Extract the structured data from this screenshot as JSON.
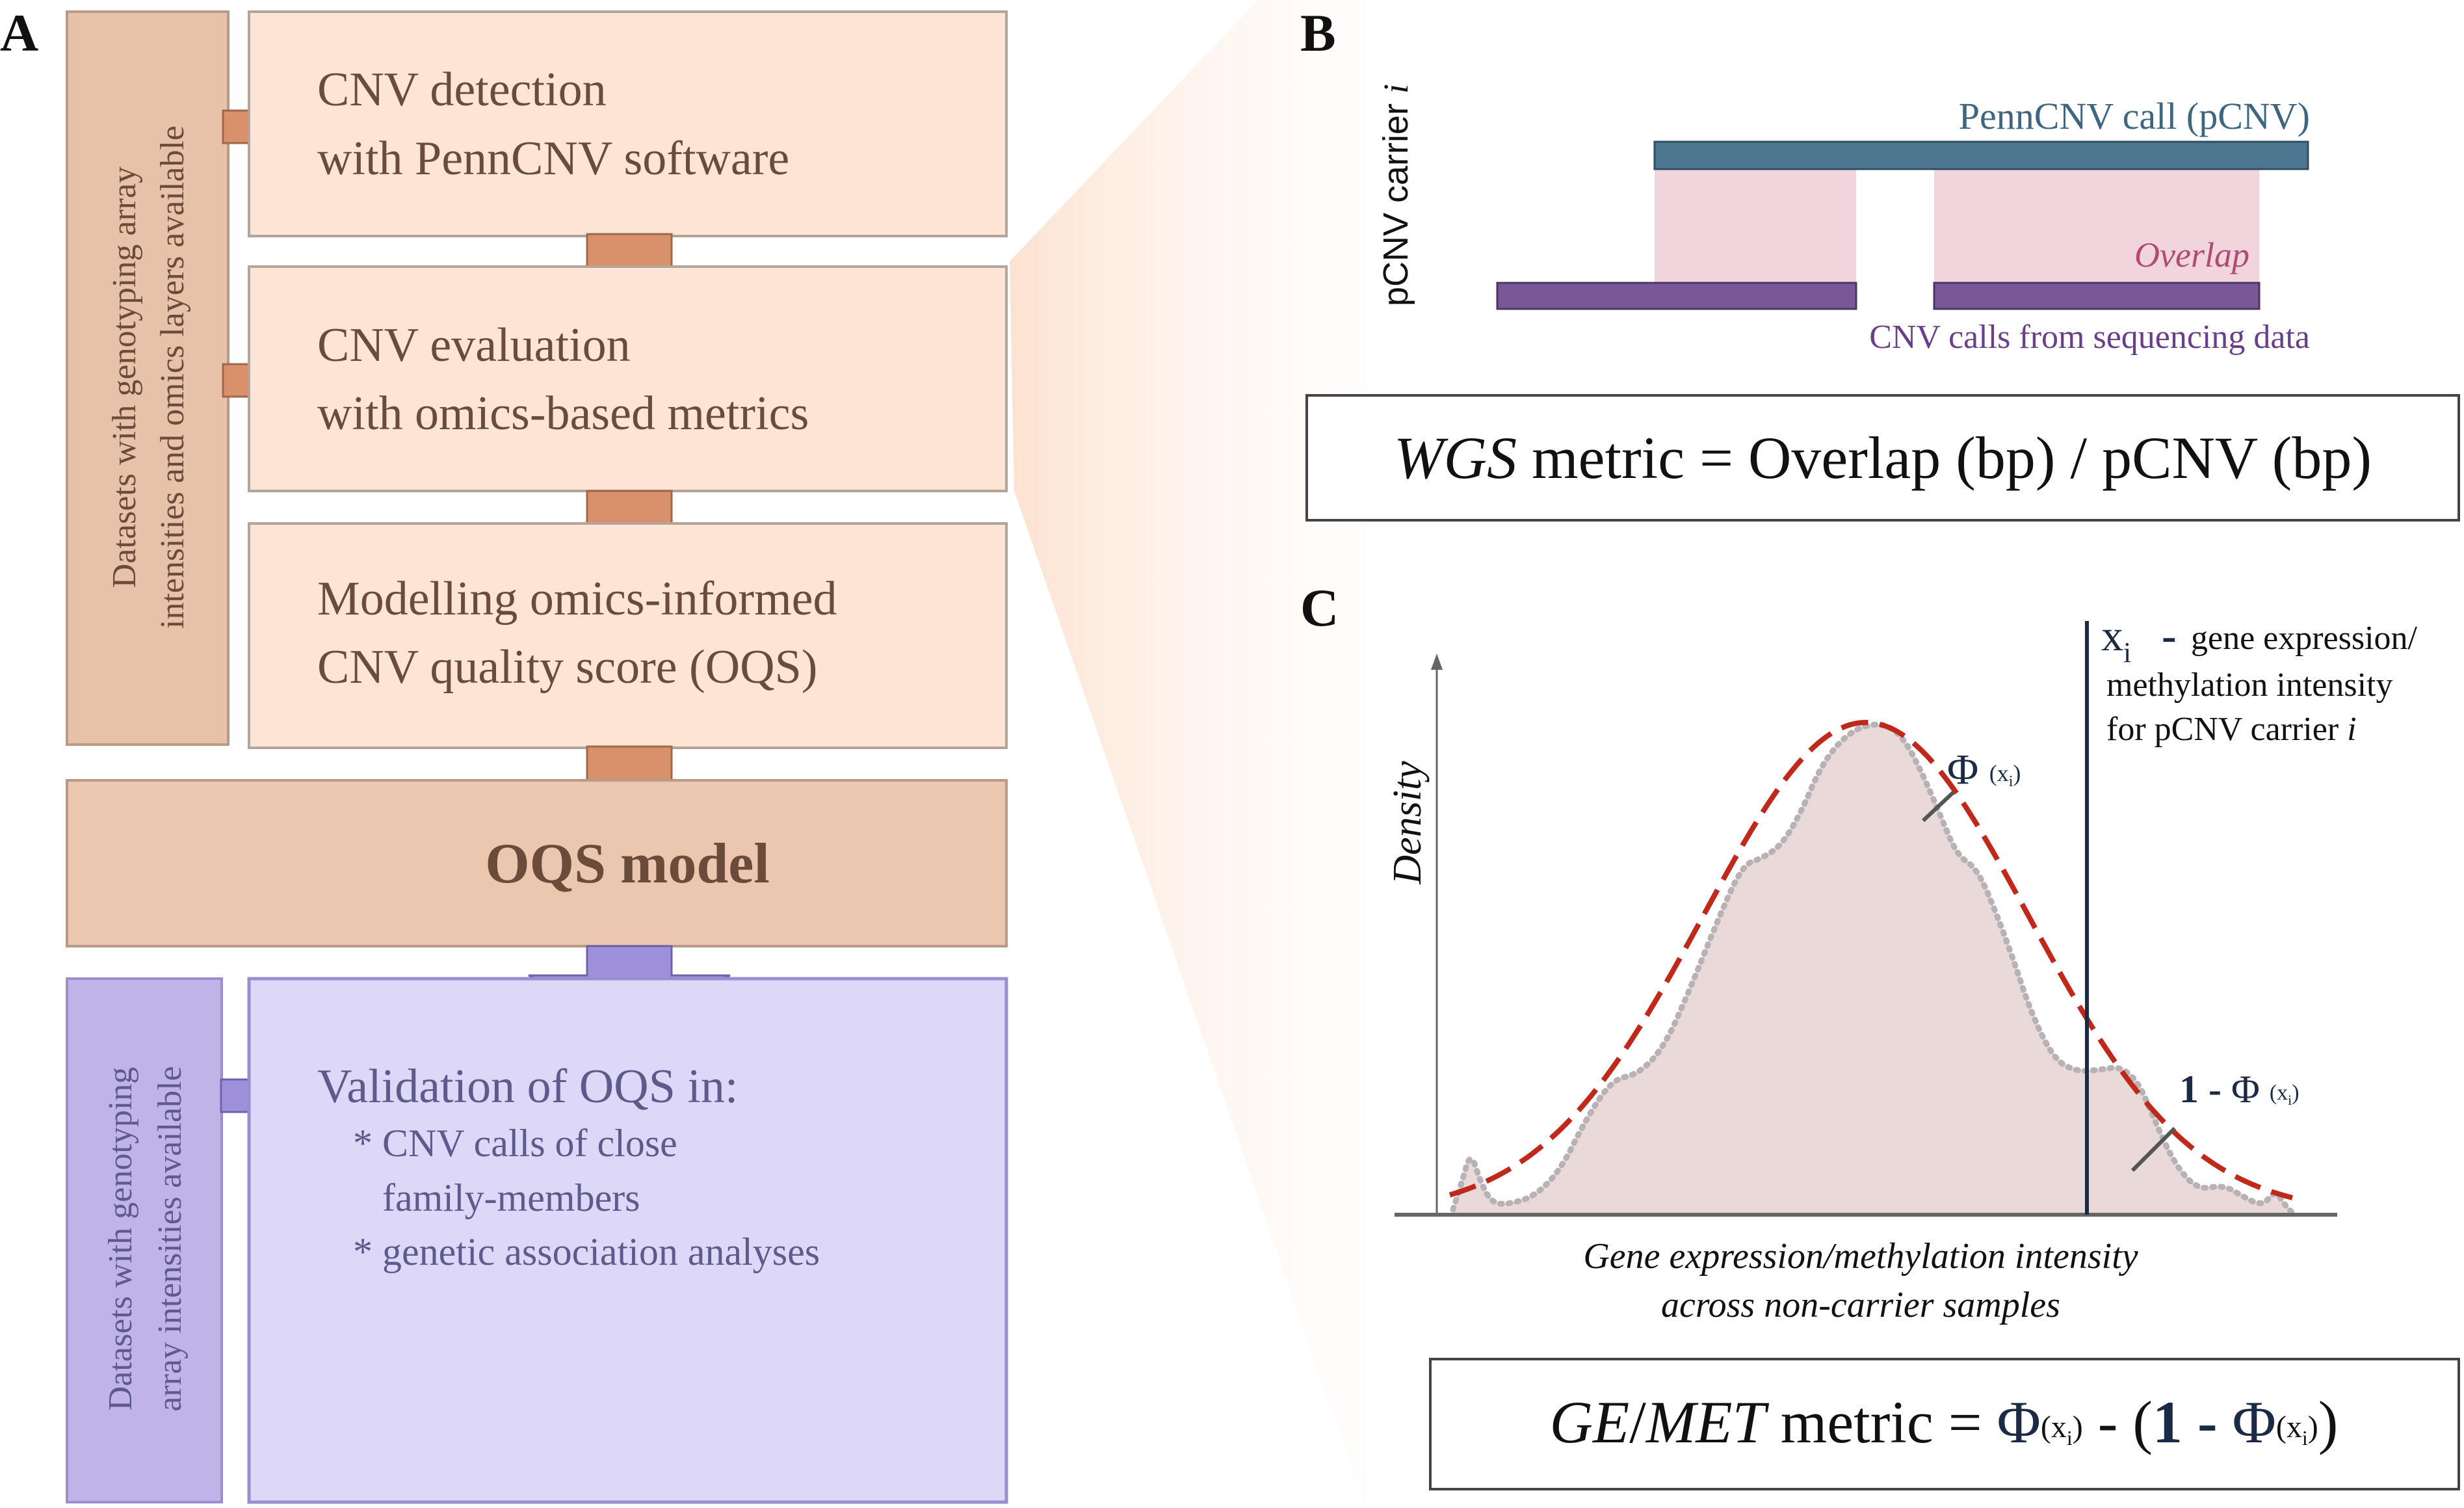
{
  "panel_a": {
    "label": "A",
    "side_label_top_line1": "Datasets with genotyping array",
    "side_label_top_line2": "intensities and omics layers available",
    "box1_line1": "CNV detection",
    "box1_line2": "with PennCNV software",
    "box2_line1": "CNV evaluation",
    "box2_line2": "with omics-based metrics",
    "box3_line1": "Modelling omics-informed",
    "box3_line2": "CNV quality score (OQS)",
    "model_label": "OQS model",
    "side_label_bottom_line1": "Datasets with genotyping",
    "side_label_bottom_line2": "array intensities available",
    "validation_title": "Validation of OQS in:",
    "validation_item1_line1": "* CNV calls of close",
    "validation_item1_line2": "family-members",
    "validation_item2": "* genetic association analyses"
  },
  "panel_b": {
    "label": "B",
    "carrier_label": "pCNV carrier",
    "carrier_label_i": "i",
    "penncnv_label": "PennCNV call (pCNV)",
    "overlap_label": "Overlap",
    "seq_label": "CNV calls from sequencing data",
    "formula_italic": "WGS",
    "formula_rest": " metric = Overlap (bp) / pCNV (bp)"
  },
  "panel_c": {
    "label": "C",
    "ylabel": "Density",
    "xlabel_line1": "Gene expression/methylation intensity",
    "xlabel_line2": "across non-carrier samples",
    "xi_symbol": "x",
    "xi_sub": "i",
    "xi_dash": "-",
    "xi_desc_line1": "gene expression/",
    "xi_desc_line2": "methylation intensity",
    "xi_desc_line3": "for pCNV carrier",
    "xi_desc_line3_i": "i",
    "phi_symbol": "Φ",
    "phi_arg_open": "(x",
    "phi_arg_sub": "i",
    "phi_arg_close": ")",
    "one_minus": "1 -",
    "formula_italic": "GE",
    "formula_slash": "/",
    "formula_italic2": "MET",
    "formula_rest": " metric = ",
    "formula_minus": " - (",
    "formula_one_minus": "1 - ",
    "formula_close": ")"
  },
  "colors": {
    "peach_fill": "#fce5d5",
    "peach_stroke": "#b4a59a",
    "side_fill": "#e8c2a8",
    "model_fill": "#ebc7b0",
    "arrow_orange": "#d9916a",
    "arrow_stroke": "#a0684a",
    "purple_fill": "#ddd8f7",
    "purple_side": "#bfb3e8",
    "purple_stroke": "#9b8dd1",
    "purple_arrow": "#9f90db",
    "text_brown": "#6b4c3b",
    "text_purple": "#5f5a8c",
    "penncnv_blue": "#4d7791",
    "overlap_pink": "#f2d5dc",
    "seq_purple": "#7a5796",
    "overlap_text": "#b04b74",
    "density_fill": "#ead9d9",
    "normal_red": "#c0281a",
    "dotted_gray": "#b8b1b5",
    "xi_line": "#1c2b45"
  }
}
